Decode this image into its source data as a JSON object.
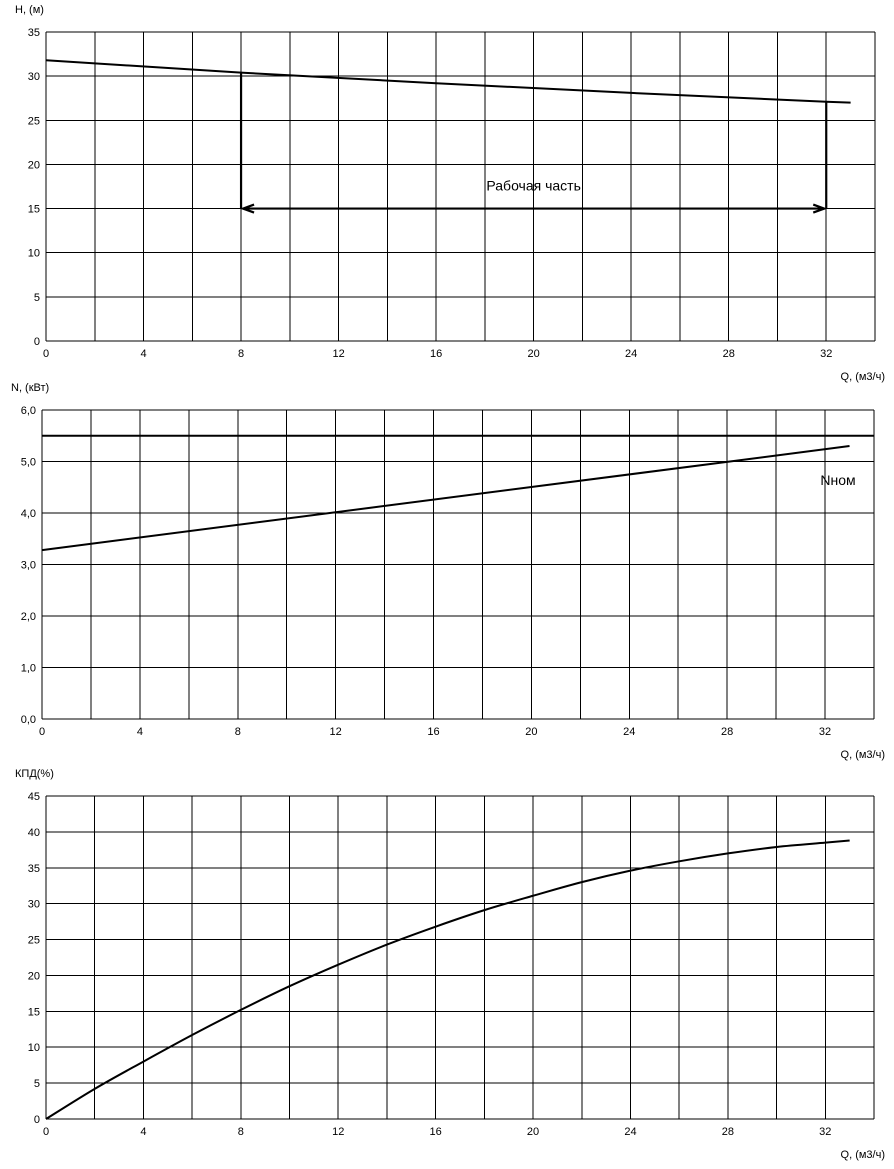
{
  "colors": {
    "line": "#000000",
    "grid": "#000000",
    "background": "#ffffff"
  },
  "chart_data": [
    {
      "type": "line",
      "ylabel": "H, (м)",
      "xlabel": "Q, (м3/ч)",
      "xlim": [
        0,
        34
      ],
      "ylim": [
        0,
        35
      ],
      "x_ticks": [
        "0",
        "4",
        "8",
        "12",
        "16",
        "20",
        "24",
        "28",
        "32"
      ],
      "y_ticks": [
        "0",
        "5",
        "10",
        "15",
        "20",
        "25",
        "30",
        "35"
      ],
      "grid": true,
      "series": [
        {
          "x": [
            0,
            8,
            16,
            24,
            32,
            33
          ],
          "values": [
            31.8,
            30.4,
            29.2,
            28.1,
            27.1,
            27.0
          ]
        }
      ],
      "annotation": {
        "text": "Рабочая часть",
        "q_start": 8,
        "q_end": 32,
        "h_level": 15
      }
    },
    {
      "type": "line",
      "ylabel": "N, (кВт)",
      "xlabel": "Q, (м3/ч)",
      "xlim": [
        0,
        34
      ],
      "ylim": [
        0,
        6
      ],
      "x_ticks": [
        "0",
        "4",
        "8",
        "12",
        "16",
        "20",
        "24",
        "28",
        "32"
      ],
      "y_ticks": [
        "0,0",
        "1,0",
        "2,0",
        "3,0",
        "4,0",
        "5,0",
        "6,0"
      ],
      "grid": true,
      "series": [
        {
          "x": [
            0,
            33
          ],
          "values": [
            3.28,
            5.3
          ]
        },
        {
          "x": [
            0,
            34
          ],
          "values": [
            5.5,
            5.5
          ]
        }
      ],
      "annotation": {
        "text": "Nном"
      }
    },
    {
      "type": "line",
      "ylabel": "КПД(%)",
      "xlabel": "Q, (м3/ч)",
      "xlim": [
        0,
        34
      ],
      "ylim": [
        0,
        45
      ],
      "x_ticks": [
        "0",
        "4",
        "8",
        "12",
        "16",
        "20",
        "24",
        "28",
        "32"
      ],
      "y_ticks": [
        "0",
        "5",
        "10",
        "15",
        "20",
        "25",
        "30",
        "35",
        "40",
        "45"
      ],
      "grid": true,
      "series": [
        {
          "x": [
            0,
            2,
            4,
            6,
            8,
            10,
            12,
            14,
            16,
            18,
            20,
            22,
            24,
            26,
            28,
            30,
            32,
            33
          ],
          "values": [
            0,
            4.2,
            8.0,
            11.7,
            15.2,
            18.5,
            21.5,
            24.3,
            26.8,
            29.1,
            31.1,
            33.0,
            34.6,
            35.9,
            37.0,
            37.9,
            38.5,
            38.8
          ]
        }
      ]
    }
  ]
}
